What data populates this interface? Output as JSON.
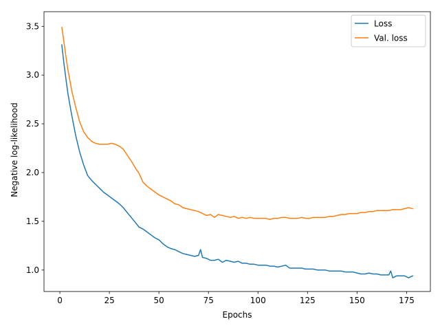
{
  "chart_data": {
    "type": "line",
    "xlabel": "Epochs",
    "ylabel": "Negative log-likelihood",
    "xlim": [
      -8,
      187
    ],
    "ylim": [
      0.78,
      3.65
    ],
    "xticks": [
      0,
      25,
      50,
      75,
      100,
      125,
      150,
      175
    ],
    "yticks": [
      1.0,
      1.5,
      2.0,
      2.5,
      3.0,
      3.5
    ],
    "ytick_labels": [
      "1.0",
      "1.5",
      "2.0",
      "2.5",
      "3.0",
      "3.5"
    ],
    "grid": false,
    "legend_position": "top-right",
    "series": [
      {
        "name": "Loss",
        "color": "#1f77b4",
        "x": [
          1,
          2,
          3,
          4,
          5,
          6,
          8,
          10,
          12,
          14,
          16,
          18,
          20,
          22,
          24,
          26,
          28,
          30,
          32,
          34,
          36,
          38,
          40,
          42,
          44,
          46,
          48,
          50,
          52,
          54,
          56,
          58,
          60,
          62,
          64,
          66,
          68,
          70,
          71,
          72,
          74,
          76,
          78,
          80,
          82,
          84,
          86,
          88,
          90,
          92,
          94,
          96,
          98,
          100,
          102,
          104,
          106,
          108,
          110,
          112,
          114,
          116,
          118,
          120,
          122,
          124,
          126,
          128,
          130,
          132,
          134,
          136,
          138,
          140,
          142,
          144,
          146,
          148,
          150,
          152,
          154,
          156,
          158,
          160,
          162,
          164,
          166,
          167,
          168,
          170,
          172,
          174,
          176,
          178
        ],
        "values": [
          3.31,
          3.13,
          2.97,
          2.82,
          2.7,
          2.59,
          2.38,
          2.21,
          2.08,
          1.97,
          1.92,
          1.88,
          1.84,
          1.8,
          1.77,
          1.74,
          1.71,
          1.68,
          1.64,
          1.59,
          1.54,
          1.49,
          1.44,
          1.42,
          1.39,
          1.36,
          1.33,
          1.31,
          1.27,
          1.24,
          1.22,
          1.21,
          1.19,
          1.17,
          1.16,
          1.15,
          1.14,
          1.15,
          1.21,
          1.13,
          1.12,
          1.1,
          1.1,
          1.11,
          1.08,
          1.1,
          1.09,
          1.08,
          1.09,
          1.07,
          1.07,
          1.06,
          1.06,
          1.05,
          1.05,
          1.05,
          1.04,
          1.04,
          1.03,
          1.04,
          1.05,
          1.02,
          1.02,
          1.02,
          1.02,
          1.01,
          1.01,
          1.01,
          1.0,
          1.0,
          1.0,
          0.99,
          0.99,
          0.99,
          0.99,
          0.98,
          0.98,
          0.98,
          0.97,
          0.96,
          0.96,
          0.97,
          0.96,
          0.96,
          0.95,
          0.95,
          0.95,
          0.99,
          0.92,
          0.94,
          0.94,
          0.94,
          0.92,
          0.94
        ]
      },
      {
        "name": "Val. loss",
        "color": "#ff7f0e",
        "x": [
          1,
          2,
          3,
          4,
          5,
          6,
          8,
          10,
          12,
          14,
          16,
          18,
          20,
          22,
          24,
          26,
          28,
          30,
          32,
          34,
          36,
          38,
          40,
          42,
          44,
          46,
          48,
          50,
          52,
          54,
          56,
          58,
          60,
          62,
          64,
          66,
          68,
          70,
          72,
          74,
          76,
          78,
          80,
          82,
          84,
          86,
          88,
          90,
          92,
          94,
          96,
          98,
          100,
          102,
          104,
          106,
          108,
          110,
          112,
          114,
          116,
          118,
          120,
          122,
          124,
          126,
          128,
          130,
          132,
          134,
          136,
          138,
          140,
          142,
          144,
          146,
          148,
          150,
          152,
          154,
          156,
          158,
          160,
          162,
          164,
          166,
          168,
          170,
          172,
          174,
          176,
          178
        ],
        "values": [
          3.49,
          3.35,
          3.2,
          3.06,
          2.95,
          2.84,
          2.67,
          2.52,
          2.42,
          2.36,
          2.32,
          2.3,
          2.29,
          2.29,
          2.29,
          2.3,
          2.29,
          2.27,
          2.24,
          2.18,
          2.12,
          2.05,
          1.99,
          1.9,
          1.86,
          1.83,
          1.8,
          1.77,
          1.75,
          1.73,
          1.71,
          1.68,
          1.67,
          1.64,
          1.63,
          1.62,
          1.61,
          1.6,
          1.58,
          1.56,
          1.57,
          1.54,
          1.57,
          1.56,
          1.55,
          1.54,
          1.55,
          1.53,
          1.54,
          1.53,
          1.54,
          1.53,
          1.53,
          1.53,
          1.53,
          1.52,
          1.53,
          1.53,
          1.54,
          1.54,
          1.53,
          1.53,
          1.53,
          1.54,
          1.53,
          1.53,
          1.54,
          1.54,
          1.54,
          1.54,
          1.55,
          1.55,
          1.56,
          1.57,
          1.57,
          1.58,
          1.58,
          1.58,
          1.59,
          1.59,
          1.6,
          1.6,
          1.61,
          1.61,
          1.61,
          1.61,
          1.62,
          1.62,
          1.62,
          1.63,
          1.64,
          1.63
        ]
      }
    ]
  }
}
